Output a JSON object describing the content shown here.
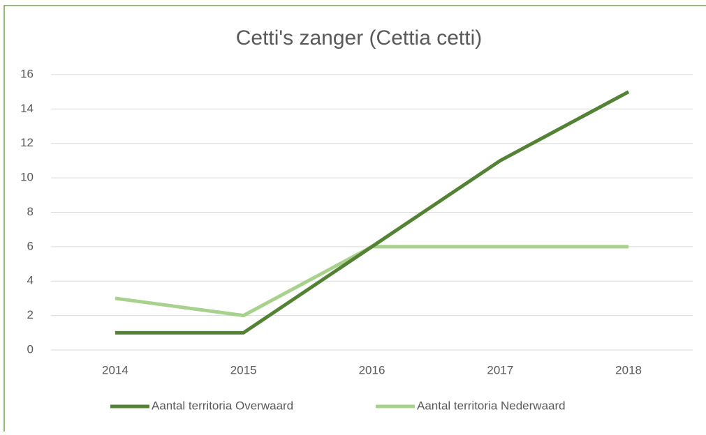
{
  "chart_data": {
    "type": "line",
    "title": "Cetti's zanger (Cettia cetti)",
    "categories": [
      "2014",
      "2015",
      "2016",
      "2017",
      "2018"
    ],
    "series": [
      {
        "name": "Aantal territoria Overwaard",
        "color": "#548235",
        "values": [
          1,
          1,
          6,
          11,
          15
        ]
      },
      {
        "name": "Aantal territoria Nederwaard",
        "color": "#a9d18e",
        "values": [
          3,
          2,
          6,
          6,
          6
        ]
      }
    ],
    "ylim": [
      0,
      16
    ],
    "yticks": [
      0,
      2,
      4,
      6,
      8,
      10,
      12,
      14,
      16
    ],
    "grid": true,
    "legend": "bottom"
  }
}
